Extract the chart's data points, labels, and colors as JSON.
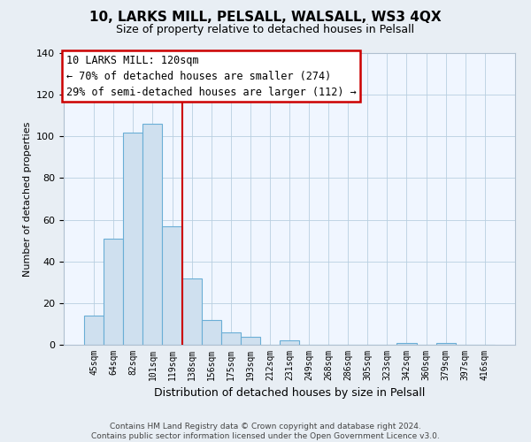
{
  "title": "10, LARKS MILL, PELSALL, WALSALL, WS3 4QX",
  "subtitle": "Size of property relative to detached houses in Pelsall",
  "xlabel": "Distribution of detached houses by size in Pelsall",
  "ylabel": "Number of detached properties",
  "bar_labels": [
    "45sqm",
    "64sqm",
    "82sqm",
    "101sqm",
    "119sqm",
    "138sqm",
    "156sqm",
    "175sqm",
    "193sqm",
    "212sqm",
    "231sqm",
    "249sqm",
    "268sqm",
    "286sqm",
    "305sqm",
    "323sqm",
    "342sqm",
    "360sqm",
    "379sqm",
    "397sqm",
    "416sqm"
  ],
  "bar_values": [
    14,
    51,
    102,
    106,
    57,
    32,
    12,
    6,
    4,
    0,
    2,
    0,
    0,
    0,
    0,
    0,
    1,
    0,
    1,
    0,
    0
  ],
  "bar_color": "#cfe0ef",
  "bar_edge_color": "#6aaed6",
  "vline_index": 4,
  "vline_color": "#cc0000",
  "ylim": [
    0,
    140
  ],
  "yticks": [
    0,
    20,
    40,
    60,
    80,
    100,
    120,
    140
  ],
  "annotation_title": "10 LARKS MILL: 120sqm",
  "annotation_line1": "← 70% of detached houses are smaller (274)",
  "annotation_line2": "29% of semi-detached houses are larger (112) →",
  "annotation_box_color": "#ffffff",
  "annotation_box_edge": "#cc0000",
  "footer_line1": "Contains HM Land Registry data © Crown copyright and database right 2024.",
  "footer_line2": "Contains public sector information licensed under the Open Government Licence v3.0.",
  "bg_color": "#e8eef4",
  "plot_bg_color": "#f0f6ff"
}
